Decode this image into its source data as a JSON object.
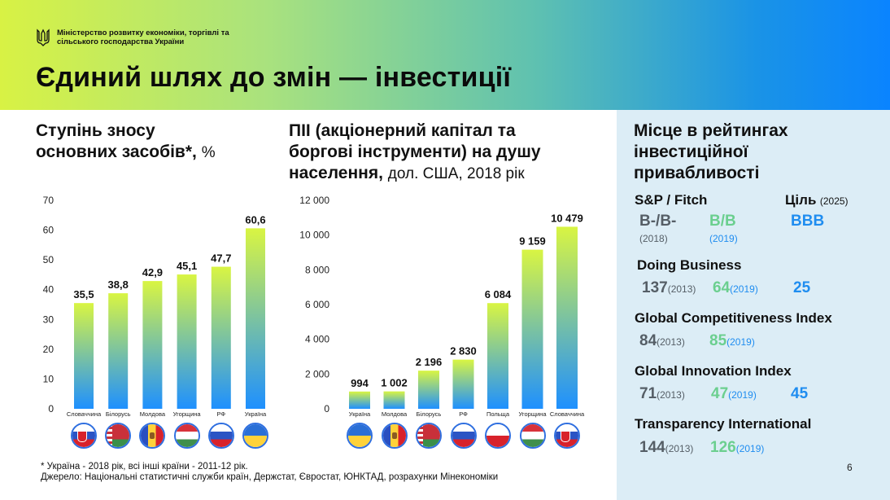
{
  "header": {
    "ministry_line1": "Міністерство розвитку економіки, торгівлі та",
    "ministry_line2": "сільського господарства України",
    "title": "Єдиний шлях до змін — інвестиції"
  },
  "colors": {
    "accent_green": "#d8f244",
    "accent_blue": "#0a84ff",
    "bar_top": "#d9f542",
    "bar_bottom": "#1e90ff"
  },
  "left_chart": {
    "title_bold": "Ступінь зносу основних засобів*,",
    "title_line1": "Ступінь зносу",
    "title_line2": "основних засобів*,",
    "title_unit": "%"
  },
  "mid_chart": {
    "title_line1": "ПІІ (акціонерний капітал та",
    "title_line2": "боргові інструменти) на душу",
    "title_line3": "населення,",
    "title_unit": "дол. США, 2018 рік"
  },
  "chart_data": [
    {
      "type": "bar",
      "categories": [
        "Словаччина",
        "Білорусь",
        "Молдова",
        "Угорщина",
        "РФ",
        "Україна"
      ],
      "values": [
        35.5,
        38.8,
        42.9,
        45.1,
        47.7,
        60.6
      ],
      "value_labels": [
        "35,5",
        "38,8",
        "42,9",
        "45,1",
        "47,7",
        "60,6"
      ],
      "title": "Ступінь зносу основних засобів*, %",
      "ylim": [
        0,
        70
      ],
      "yticks": [
        "0",
        "10",
        "20",
        "30",
        "40",
        "50",
        "60",
        "70"
      ],
      "grid": false
    },
    {
      "type": "bar",
      "categories": [
        "Україна",
        "Молдова",
        "Білорусь",
        "РФ",
        "Польща",
        "Угорщина",
        "Словаччина"
      ],
      "values": [
        994,
        1002,
        2196,
        2830,
        6084,
        9159,
        10479
      ],
      "value_labels": [
        "994",
        "1 002",
        "2 196",
        "2 830",
        "6 084",
        "9 159",
        "10 479"
      ],
      "title": "ПІІ (акціонерний капітал та боргові інструменти) на душу населення, дол. США, 2018 рік",
      "ylim": [
        0,
        12000
      ],
      "yticks": [
        "0",
        "2 000",
        "4 000",
        "6 000",
        "8 000",
        "10 000",
        "12 000"
      ],
      "grid": false
    }
  ],
  "flags_left": [
    "flag-slovakia",
    "flag-belarus",
    "flag-moldova",
    "flag-hungary",
    "flag-russia",
    "flag-ukraine"
  ],
  "flags_mid": [
    "flag-ukraine",
    "flag-moldova",
    "flag-belarus",
    "flag-russia",
    "flag-poland",
    "flag-hungary",
    "flag-slovakia"
  ],
  "ratings": {
    "title_line1": "Місце в рейтингах",
    "title_line2": "інвестиційної",
    "title_line3": "привабливості",
    "sp_head": "S&P / Fitch",
    "target_head": "Ціль",
    "target_year": "(2025)",
    "sp_2018": "B-/B-",
    "sp_2018_year": "(2018)",
    "sp_2019": "B/B",
    "sp_2019_year": "(2019)",
    "sp_target": "BBB",
    "db_head": "Doing Business",
    "db_2013": "137",
    "db_2013_year": "(2013)",
    "db_2019": "64",
    "db_2019_year": "(2019)",
    "db_target": "25",
    "gci_head": "Global Competitiveness Index",
    "gci_2013": "84",
    "gci_2013_year": "(2013)",
    "gci_2019": "85",
    "gci_2019_year": "(2019)",
    "gii_head": "Global Innovation Index",
    "gii_2013": "71",
    "gii_2013_year": "(2013)",
    "gii_2019": "47",
    "gii_2019_year": "(2019)",
    "gii_target": "45",
    "ti_head": "Transparency International",
    "ti_2013": "144",
    "ti_2013_year": "(2013)",
    "ti_2019": "126",
    "ti_2019_year": "(2019)"
  },
  "footnote_line1": "* Україна - 2018 рік, всі інші країни - 2011-12 рік.",
  "footnote_line2": "Джерело: Національні статистичні служби країн, Держстат, Євростат, ЮНКТАД, розрахунки Мінекономіки",
  "page_number": "6"
}
